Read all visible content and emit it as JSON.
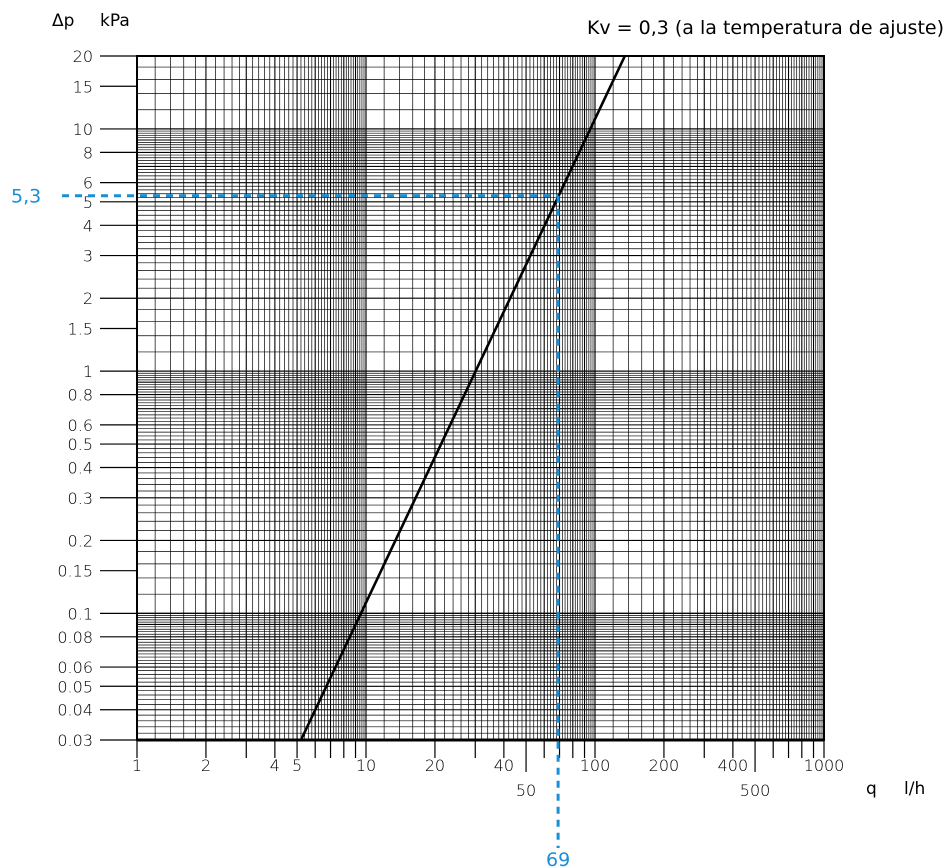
{
  "chart_data": {
    "type": "line",
    "title": "Kv = 0,3 (a la temperatura de ajuste)",
    "y_symbol": "Δp",
    "y_unit": "kPa",
    "x_symbol": "q",
    "x_unit": "l/h",
    "x_scale": "log",
    "y_scale": "log",
    "xlim": [
      1,
      1000
    ],
    "ylim": [
      0.03,
      20
    ],
    "grid": true,
    "x_ticks": [
      {
        "value": 1,
        "label": "1",
        "row": 1
      },
      {
        "value": 2,
        "label": "2",
        "row": 1
      },
      {
        "value": 4,
        "label": "4",
        "row": 1
      },
      {
        "value": 5,
        "label": "5",
        "row": 1
      },
      {
        "value": 10,
        "label": "10",
        "row": 1
      },
      {
        "value": 20,
        "label": "20",
        "row": 1
      },
      {
        "value": 40,
        "label": "40",
        "row": 1
      },
      {
        "value": 50,
        "label": "50",
        "row": 2
      },
      {
        "value": 100,
        "label": "100",
        "row": 1
      },
      {
        "value": 200,
        "label": "200",
        "row": 1
      },
      {
        "value": 400,
        "label": "400",
        "row": 1
      },
      {
        "value": 500,
        "label": "500",
        "row": 2
      },
      {
        "value": 1000,
        "label": "1000",
        "row": 1
      }
    ],
    "y_ticks": [
      {
        "value": 20,
        "label": "20"
      },
      {
        "value": 15,
        "label": "15"
      },
      {
        "value": 10,
        "label": "10"
      },
      {
        "value": 8,
        "label": "8"
      },
      {
        "value": 6,
        "label": "6"
      },
      {
        "value": 5,
        "label": "5"
      },
      {
        "value": 4,
        "label": "4"
      },
      {
        "value": 3,
        "label": "3"
      },
      {
        "value": 2,
        "label": "2"
      },
      {
        "value": 1.5,
        "label": "1.5"
      },
      {
        "value": 1,
        "label": "1"
      },
      {
        "value": 0.8,
        "label": "0.8"
      },
      {
        "value": 0.6,
        "label": "0.6"
      },
      {
        "value": 0.5,
        "label": "0.5"
      },
      {
        "value": 0.4,
        "label": "0.4"
      },
      {
        "value": 0.3,
        "label": "0.3"
      },
      {
        "value": 0.2,
        "label": "0.2"
      },
      {
        "value": 0.15,
        "label": "0.15"
      },
      {
        "value": 0.1,
        "label": "0.1"
      },
      {
        "value": 0.08,
        "label": "0.08"
      },
      {
        "value": 0.06,
        "label": "0.06"
      },
      {
        "value": 0.05,
        "label": "0.05"
      },
      {
        "value": 0.04,
        "label": "0.04"
      },
      {
        "value": 0.03,
        "label": "0.03"
      }
    ],
    "series": [
      {
        "x": [
          5.2,
          135
        ],
        "y": [
          0.03,
          20
        ]
      }
    ],
    "highlight": {
      "x": 69,
      "y": 5.3,
      "x_label": "69",
      "y_label": "5,3",
      "color": "#1a8fd6"
    },
    "line_color": "#000000"
  }
}
